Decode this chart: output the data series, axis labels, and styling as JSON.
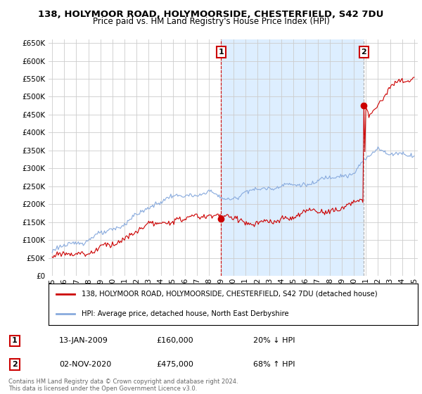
{
  "title": "138, HOLYMOOR ROAD, HOLYMOORSIDE, CHESTERFIELD, S42 7DU",
  "subtitle": "Price paid vs. HM Land Registry's House Price Index (HPI)",
  "red_label": "138, HOLYMOOR ROAD, HOLYMOORSIDE, CHESTERFIELD, S42 7DU (detached house)",
  "blue_label": "HPI: Average price, detached house, North East Derbyshire",
  "annotation1_date": "13-JAN-2009",
  "annotation1_price": "£160,000",
  "annotation1_hpi": "20% ↓ HPI",
  "annotation2_date": "02-NOV-2020",
  "annotation2_price": "£475,000",
  "annotation2_hpi": "68% ↑ HPI",
  "footer": "Contains HM Land Registry data © Crown copyright and database right 2024.\nThis data is licensed under the Open Government Licence v3.0.",
  "ylim": [
    0,
    660000
  ],
  "yticks": [
    0,
    50000,
    100000,
    150000,
    200000,
    250000,
    300000,
    350000,
    400000,
    450000,
    500000,
    550000,
    600000,
    650000
  ],
  "background_color": "#ffffff",
  "plot_bg_color": "#ffffff",
  "shade_color": "#ddeeff",
  "grid_color": "#cccccc",
  "red_color": "#cc0000",
  "blue_color": "#88aadd",
  "title_fontsize": 9.5,
  "subtitle_fontsize": 8.5
}
